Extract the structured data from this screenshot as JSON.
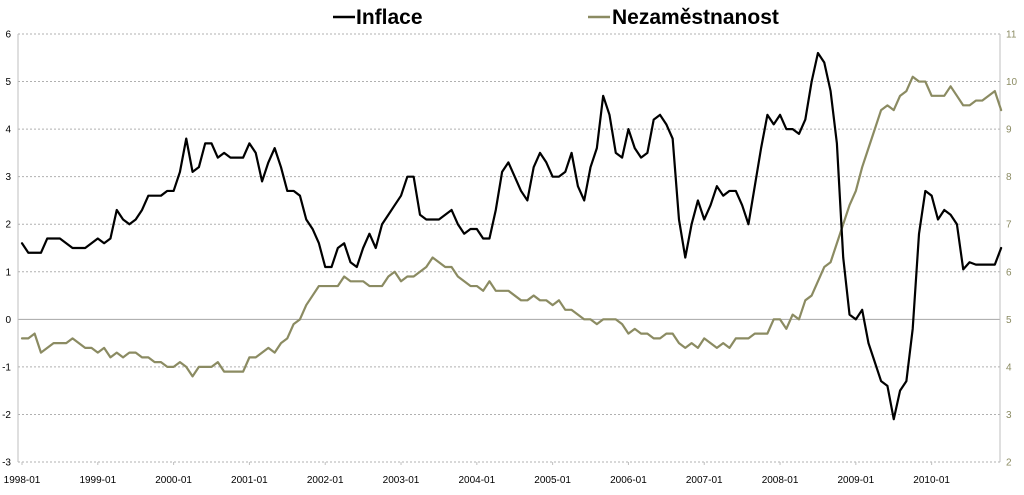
{
  "chart_data": {
    "type": "line",
    "title": "",
    "legend_position": "top-center",
    "grid": "horizontal-dashed",
    "x_start": "1998-01",
    "x_frequency": "monthly",
    "x_tick_labels": [
      "1998-01",
      "1999-01",
      "2000-01",
      "2001-01",
      "2002-01",
      "2003-01",
      "2004-01",
      "2005-01",
      "2006-01",
      "2007-01",
      "2008-01",
      "2009-01",
      "2010-01"
    ],
    "left_axis": {
      "ylim": [
        -3,
        6
      ],
      "tick_labels": [
        "-3",
        "-2",
        "-1",
        "0",
        "1",
        "2",
        "3",
        "4",
        "5",
        "6"
      ]
    },
    "right_axis": {
      "ylim": [
        2,
        11
      ],
      "tick_labels": [
        "2",
        "3",
        "4",
        "5",
        "6",
        "7",
        "8",
        "9",
        "10",
        "11"
      ]
    },
    "series": [
      {
        "name": "Inflace",
        "axis": "left",
        "color": "#000000",
        "values": [
          1.6,
          1.4,
          1.4,
          1.4,
          1.7,
          1.7,
          1.7,
          1.6,
          1.5,
          1.5,
          1.5,
          1.6,
          1.7,
          1.6,
          1.7,
          2.3,
          2.1,
          2.0,
          2.1,
          2.3,
          2.6,
          2.6,
          2.6,
          2.7,
          2.7,
          3.1,
          3.8,
          3.1,
          3.2,
          3.7,
          3.7,
          3.4,
          3.5,
          3.4,
          3.4,
          3.4,
          3.7,
          3.5,
          2.9,
          3.3,
          3.6,
          3.2,
          2.7,
          2.7,
          2.6,
          2.1,
          1.9,
          1.6,
          1.1,
          1.1,
          1.5,
          1.6,
          1.2,
          1.1,
          1.5,
          1.8,
          1.5,
          2.0,
          2.2,
          2.4,
          2.6,
          3.0,
          3.0,
          2.2,
          2.1,
          2.1,
          2.1,
          2.2,
          2.3,
          2.0,
          1.8,
          1.9,
          1.9,
          1.7,
          1.7,
          2.3,
          3.1,
          3.3,
          3.0,
          2.7,
          2.5,
          3.2,
          3.5,
          3.3,
          3.0,
          3.0,
          3.1,
          3.5,
          2.8,
          2.5,
          3.2,
          3.6,
          4.7,
          4.3,
          3.5,
          3.4,
          4.0,
          3.6,
          3.4,
          3.5,
          4.2,
          4.3,
          4.1,
          3.8,
          2.1,
          1.3,
          2.0,
          2.5,
          2.1,
          2.4,
          2.8,
          2.6,
          2.7,
          2.7,
          2.4,
          2.0,
          2.8,
          3.6,
          4.3,
          4.1,
          4.3,
          4.0,
          4.0,
          3.9,
          4.2,
          5.0,
          5.6,
          5.4,
          4.8,
          3.7,
          1.3,
          0.1,
          0.0,
          0.2,
          -0.5,
          -0.9,
          -1.3,
          -1.4,
          -2.1,
          -1.5,
          -1.3,
          -0.2,
          1.8,
          2.7,
          2.6,
          2.1,
          2.3,
          2.2,
          2.0,
          1.05,
          1.2,
          1.15,
          1.15,
          1.15,
          1.15,
          1.5
        ]
      },
      {
        "name": "Nezaměstnanost",
        "axis": "right",
        "color": "#8b8b62",
        "values": [
          4.6,
          4.6,
          4.7,
          4.3,
          4.4,
          4.5,
          4.5,
          4.5,
          4.6,
          4.5,
          4.4,
          4.4,
          4.3,
          4.4,
          4.2,
          4.3,
          4.2,
          4.3,
          4.3,
          4.2,
          4.2,
          4.1,
          4.1,
          4.0,
          4.0,
          4.1,
          4.0,
          3.8,
          4.0,
          4.0,
          4.0,
          4.1,
          3.9,
          3.9,
          3.9,
          3.9,
          4.2,
          4.2,
          4.3,
          4.4,
          4.3,
          4.5,
          4.6,
          4.9,
          5.0,
          5.3,
          5.5,
          5.7,
          5.7,
          5.7,
          5.7,
          5.9,
          5.8,
          5.8,
          5.8,
          5.7,
          5.7,
          5.7,
          5.9,
          6.0,
          5.8,
          5.9,
          5.9,
          6.0,
          6.1,
          6.3,
          6.2,
          6.1,
          6.1,
          5.9,
          5.8,
          5.7,
          5.7,
          5.6,
          5.8,
          5.6,
          5.6,
          5.6,
          5.5,
          5.4,
          5.4,
          5.5,
          5.4,
          5.4,
          5.3,
          5.4,
          5.2,
          5.2,
          5.1,
          5.0,
          5.0,
          4.9,
          5.0,
          5.0,
          5.0,
          4.9,
          4.7,
          4.8,
          4.7,
          4.7,
          4.6,
          4.6,
          4.7,
          4.7,
          4.5,
          4.4,
          4.5,
          4.4,
          4.6,
          4.5,
          4.4,
          4.5,
          4.4,
          4.6,
          4.6,
          4.6,
          4.7,
          4.7,
          4.7,
          5.0,
          5.0,
          4.8,
          5.1,
          5.0,
          5.4,
          5.5,
          5.8,
          6.1,
          6.2,
          6.6,
          7.0,
          7.4,
          7.7,
          8.2,
          8.6,
          9.0,
          9.4,
          9.5,
          9.4,
          9.7,
          9.8,
          10.1,
          10.0,
          10.0,
          9.7,
          9.7,
          9.7,
          9.9,
          9.7,
          9.5,
          9.5,
          9.6,
          9.6,
          9.7,
          9.8,
          9.4
        ]
      }
    ]
  }
}
